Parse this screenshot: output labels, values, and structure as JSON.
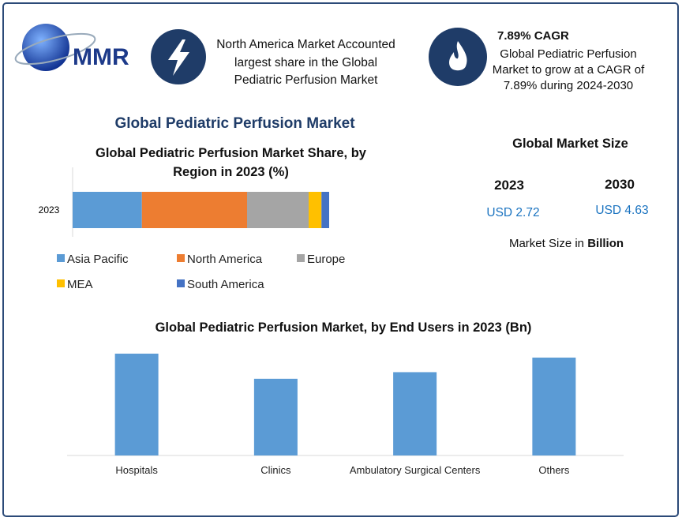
{
  "logo": "MMR",
  "highlight": "North America Market Accounted largest share in the Global Pediatric Perfusion Market",
  "cagr": {
    "title": "7.89% CAGR",
    "text": "Global Pediatric Perfusion Market to grow at a CAGR of 7.89% during 2024-2030"
  },
  "heading": "Global Pediatric Perfusion Market",
  "market_size": {
    "title": "Global Market Size",
    "year_1": "2023",
    "value_1": "USD 2.72",
    "year_2": "2030",
    "value_2": "USD 4.63",
    "note": "Market Size in",
    "unit": "Billion"
  },
  "chart_data": [
    {
      "type": "stacked-bar",
      "title": "Global Pediatric Perfusion Market Share, by Region in 2023 (%)",
      "categories": [
        "2023"
      ],
      "series": [
        {
          "name": "Asia Pacific",
          "color": "#5b9bd5",
          "values": [
            27
          ]
        },
        {
          "name": "North America",
          "color": "#ed7d31",
          "values": [
            41
          ]
        },
        {
          "name": "Europe",
          "color": "#a5a5a5",
          "values": [
            24
          ]
        },
        {
          "name": "MEA",
          "color": "#ffc000",
          "values": [
            5
          ]
        },
        {
          "name": "South America",
          "color": "#4472c4",
          "values": [
            3
          ]
        }
      ]
    },
    {
      "type": "bar",
      "title": "Global Pediatric Perfusion Market, by End Users  in 2023 (Bn)",
      "categories": [
        "Hospitals",
        "Clinics",
        "Ambulatory Surgical Centers",
        "Others"
      ],
      "values": [
        0.77,
        0.58,
        0.63,
        0.74
      ],
      "color": "#5b9bd5"
    }
  ]
}
